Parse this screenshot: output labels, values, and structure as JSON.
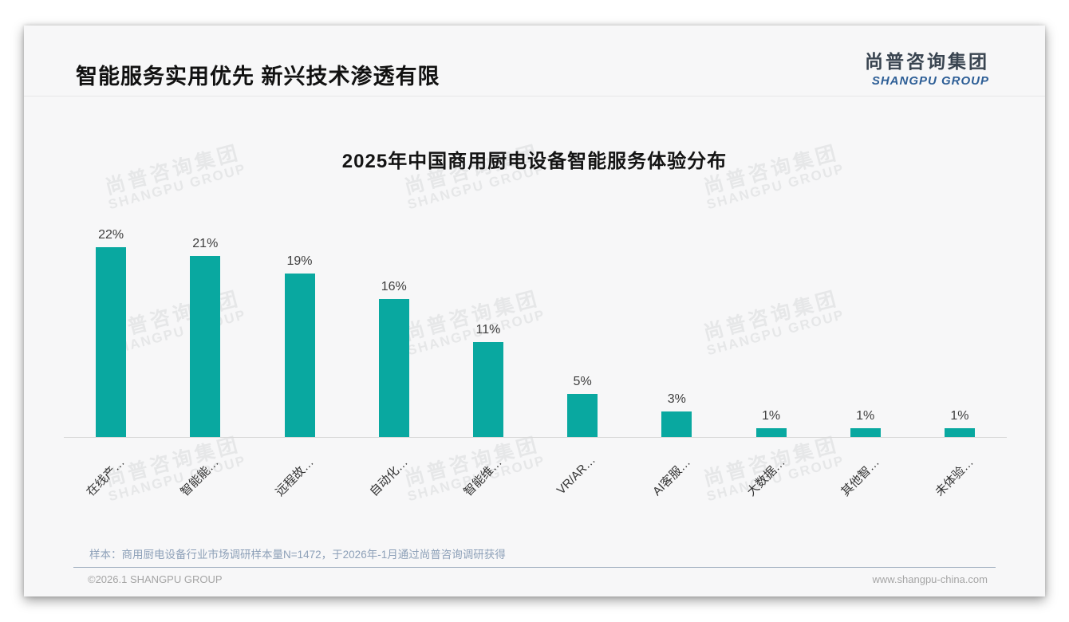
{
  "page": {
    "title": "智能服务实用优先 新兴技术渗透有限",
    "logo": {
      "cn": "尚普咨询集团",
      "en": "SHANGPU GROUP"
    },
    "watermark": {
      "cn": "尚普咨询集团",
      "en": "SHANGPU GROUP"
    },
    "footnote": "样本：商用厨电设备行业市场调研样本量N=1472，于2026年-1月通过尚普咨询调研获得",
    "footer_left": "©2026.1 SHANGPU GROUP",
    "footer_right": "www.shangpu-china.com"
  },
  "chart_data": {
    "type": "bar",
    "title": "2025年中国商用厨电设备智能服务体验分布",
    "categories": [
      "在线产…",
      "智能能…",
      "远程故…",
      "自动化…",
      "智能维…",
      "VR/AR…",
      "AI客服…",
      "大数据…",
      "其他智…",
      "未体验…"
    ],
    "values": [
      22,
      21,
      19,
      16,
      11,
      5,
      3,
      1,
      1,
      1
    ],
    "value_labels": [
      "22%",
      "21%",
      "19%",
      "16%",
      "11%",
      "5%",
      "3%",
      "1%",
      "1%",
      "1%"
    ],
    "unit": "%",
    "bar_color": "#09a8a0",
    "ylim": [
      0,
      24
    ],
    "grid": false,
    "legend": null,
    "xlabel": "",
    "ylabel": ""
  }
}
